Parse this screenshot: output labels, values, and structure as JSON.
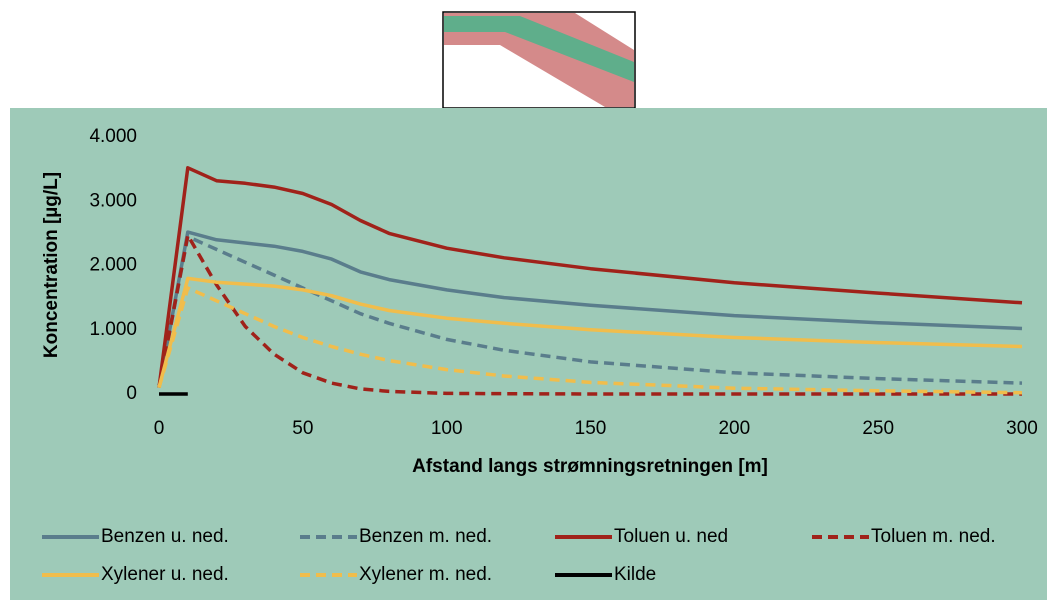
{
  "chart_data": {
    "type": "line",
    "xlabel": "Afstand langs strømningsretningen [m]",
    "ylabel": "Koncentration [µg/L]",
    "x": [
      0,
      10,
      20,
      30,
      40,
      50,
      60,
      70,
      80,
      100,
      120,
      150,
      200,
      250,
      300
    ],
    "xlim": [
      0,
      300
    ],
    "xticks": [
      0,
      50,
      100,
      150,
      200,
      250,
      300
    ],
    "ylim": [
      0,
      4000
    ],
    "yticks": [
      0,
      {
        "value": 1000,
        "label": "1.000"
      },
      {
        "value": 2000,
        "label": "2.000"
      },
      {
        "value": 3000,
        "label": "3.000"
      },
      {
        "value": 4000,
        "label": "4.000"
      }
    ],
    "grid": false,
    "legend": "bottom",
    "series": [
      {
        "name": "Benzen u. ned.",
        "color": "#5a7d8c",
        "dashed": false,
        "values": [
          100,
          2520,
          2400,
          2350,
          2300,
          2220,
          2100,
          1900,
          1780,
          1620,
          1500,
          1380,
          1220,
          1110,
          1020
        ]
      },
      {
        "name": "Benzen m. ned.",
        "color": "#5a7d8c",
        "dashed": true,
        "values": [
          100,
          2450,
          2250,
          2050,
          1850,
          1650,
          1450,
          1250,
          1100,
          850,
          680,
          500,
          330,
          240,
          170
        ]
      },
      {
        "name": "Toluen u. ned",
        "color": "#a0221a",
        "dashed": false,
        "values": [
          100,
          3520,
          3320,
          3280,
          3220,
          3120,
          2950,
          2700,
          2500,
          2270,
          2120,
          1950,
          1730,
          1570,
          1420
        ]
      },
      {
        "name": "Toluen m. ned.",
        "color": "#a0221a",
        "dashed": true,
        "values": [
          100,
          2470,
          1700,
          1050,
          620,
          330,
          170,
          80,
          40,
          10,
          5,
          0,
          0,
          0,
          0
        ]
      },
      {
        "name": "Xylener u. ned.",
        "color": "#f0bd4c",
        "dashed": false,
        "values": [
          100,
          1800,
          1740,
          1710,
          1680,
          1620,
          1530,
          1400,
          1300,
          1180,
          1100,
          1000,
          880,
          800,
          740
        ]
      },
      {
        "name": "Xylener m. ned.",
        "color": "#f0bd4c",
        "dashed": true,
        "values": [
          100,
          1650,
          1450,
          1250,
          1050,
          880,
          740,
          620,
          520,
          380,
          280,
          180,
          90,
          50,
          20
        ]
      },
      {
        "name": "Kilde",
        "color": "#000000",
        "dashed": false,
        "values": [
          0,
          0,
          null,
          null,
          null,
          null,
          null,
          null,
          null,
          null,
          null,
          null,
          null,
          null,
          null
        ]
      }
    ]
  }
}
